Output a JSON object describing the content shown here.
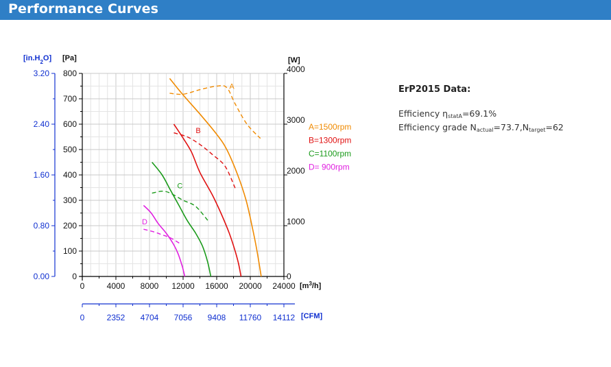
{
  "header": {
    "title": "Performance Curves"
  },
  "erp": {
    "heading": "ErP2015 Data:",
    "efficiency_label": "Efficiency η",
    "efficiency_sub": "statA",
    "efficiency_value": "=69.1%",
    "grade_label": "Efficiency grade N",
    "grade_sub1": "actual",
    "grade_mid": "=73.7,N",
    "grade_sub2": "target",
    "grade_value": "=62"
  },
  "chart_data": {
    "type": "line",
    "x_axis": {
      "unit": "[m³/h]",
      "range": [
        0,
        24000
      ],
      "ticks": [
        0,
        4000,
        8000,
        12000,
        16000,
        20000,
        24000
      ]
    },
    "x2_axis": {
      "unit": "[CFM]",
      "ticks": [
        "0",
        "2352",
        "4704",
        "7056",
        "9408",
        "11760",
        "14112"
      ]
    },
    "y_axis": {
      "unit": "[Pa]",
      "range": [
        0,
        800
      ],
      "ticks": [
        0,
        100,
        200,
        300,
        400,
        500,
        600,
        700,
        800
      ]
    },
    "y2_axis": {
      "unit": "[in.H₂O]",
      "ticks": [
        "0.00",
        "0.80",
        "1.60",
        "2.40",
        "3.20"
      ]
    },
    "y3_axis": {
      "unit": "[W]",
      "range": [
        0,
        4000
      ],
      "ticks": [
        "0",
        "1000",
        "2000",
        "3000",
        "4000"
      ]
    },
    "grid": true,
    "series": [
      {
        "name": "A=1500rpm",
        "label": "A",
        "color": "#f08a00",
        "pressure": [
          [
            10400,
            780
          ],
          [
            12000,
            715
          ],
          [
            14000,
            640
          ],
          [
            16000,
            560
          ],
          [
            17200,
            500
          ],
          [
            18500,
            400
          ],
          [
            19500,
            300
          ],
          [
            20200,
            200
          ],
          [
            20800,
            100
          ],
          [
            21300,
            0
          ]
        ],
        "power": [
          [
            10400,
            3610
          ],
          [
            12000,
            3590
          ],
          [
            14000,
            3680
          ],
          [
            16000,
            3750
          ],
          [
            17200,
            3720
          ],
          [
            18200,
            3400
          ],
          [
            19600,
            3000
          ],
          [
            21200,
            2720
          ]
        ]
      },
      {
        "name": "B=1300rpm",
        "label": "B",
        "color": "#e01010",
        "pressure": [
          [
            10900,
            600
          ],
          [
            12000,
            545
          ],
          [
            13000,
            490
          ],
          [
            14000,
            410
          ],
          [
            15500,
            320
          ],
          [
            16500,
            250
          ],
          [
            17500,
            170
          ],
          [
            18200,
            100
          ],
          [
            18600,
            50
          ],
          [
            18900,
            0
          ]
        ],
        "power": [
          [
            10900,
            2830
          ],
          [
            12500,
            2750
          ],
          [
            14000,
            2600
          ],
          [
            15500,
            2400
          ],
          [
            17000,
            2170
          ],
          [
            18200,
            1740
          ]
        ]
      },
      {
        "name": "C=1100rpm",
        "label": "C",
        "color": "#1a9a1a",
        "pressure": [
          [
            8300,
            450
          ],
          [
            9500,
            400
          ],
          [
            10500,
            340
          ],
          [
            11500,
            280
          ],
          [
            12500,
            220
          ],
          [
            13500,
            170
          ],
          [
            14300,
            120
          ],
          [
            14900,
            60
          ],
          [
            15300,
            0
          ]
        ],
        "power": [
          [
            8300,
            1640
          ],
          [
            9500,
            1680
          ],
          [
            10500,
            1640
          ],
          [
            12000,
            1500
          ],
          [
            13500,
            1380
          ],
          [
            15100,
            1070
          ]
        ]
      },
      {
        "name": "D= 900rpm",
        "label": "D",
        "color": "#e020e0",
        "pressure": [
          [
            7300,
            280
          ],
          [
            8200,
            250
          ],
          [
            9000,
            210
          ],
          [
            10000,
            170
          ],
          [
            10800,
            130
          ],
          [
            11400,
            90
          ],
          [
            11900,
            40
          ],
          [
            12200,
            0
          ]
        ],
        "power": [
          [
            7300,
            930
          ],
          [
            8500,
            880
          ],
          [
            9500,
            820
          ],
          [
            10500,
            760
          ],
          [
            11800,
            630
          ]
        ]
      }
    ]
  }
}
